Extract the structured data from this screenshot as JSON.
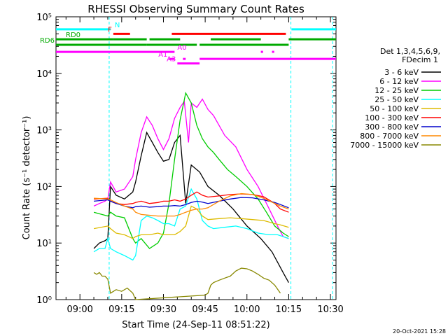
{
  "chart_data": {
    "type": "line",
    "title": "RHESSI Observing Summary Count Rates",
    "xlabel": "Start Time (24-Sep-11 08:51:22)",
    "ylabel": "Count Rate (s⁻¹ detector⁻¹)",
    "y_scale": "log",
    "ylim": [
      1,
      100000
    ],
    "xlim_minutes": [
      51.4,
      152.0
    ],
    "x_ticks": [
      {
        "label": "09:00",
        "min": 60
      },
      {
        "label": "09:15",
        "min": 75
      },
      {
        "label": "09:30",
        "min": 90
      },
      {
        "label": "09:45",
        "min": 105
      },
      {
        "label": "10:00",
        "min": 120
      },
      {
        "label": "10:15",
        "min": 135
      },
      {
        "label": "10:30",
        "min": 150
      }
    ],
    "y_ticks": [
      {
        "label": "10⁰",
        "exp": 0
      },
      {
        "label": "10¹",
        "exp": 1
      },
      {
        "label": "10²",
        "exp": 2
      },
      {
        "label": "10³",
        "exp": 3
      },
      {
        "label": "10⁴",
        "exp": 4
      },
      {
        "label": "10⁵",
        "exp": 5
      }
    ],
    "legend": {
      "placement": "right",
      "header": [
        "Det 1,3,4,5,6,9,",
        "FDecim 1"
      ]
    },
    "series": [
      {
        "name": "3 - 6 keV",
        "color": "#000000",
        "points": [
          [
            65,
            8
          ],
          [
            67,
            10
          ],
          [
            69,
            11
          ],
          [
            70,
            12
          ],
          [
            71,
            100
          ],
          [
            73,
            70
          ],
          [
            76,
            60
          ],
          [
            79,
            80
          ],
          [
            80,
            120
          ],
          [
            82,
            350
          ],
          [
            84,
            900
          ],
          [
            86,
            600
          ],
          [
            88,
            400
          ],
          [
            90,
            280
          ],
          [
            92,
            300
          ],
          [
            94,
            600
          ],
          [
            96,
            800
          ],
          [
            98,
            50
          ],
          [
            100,
            240
          ],
          [
            103,
            180
          ],
          [
            106,
            100
          ],
          [
            110,
            70
          ],
          [
            115,
            40
          ],
          [
            120,
            20
          ],
          [
            125,
            12
          ],
          [
            129,
            7
          ],
          [
            133,
            3
          ],
          [
            135,
            2
          ]
        ]
      },
      {
        "name": "6 - 12 keV",
        "color": "#ff00ff",
        "points": [
          [
            65,
            45
          ],
          [
            67,
            50
          ],
          [
            69,
            55
          ],
          [
            70,
            60
          ],
          [
            71,
            120
          ],
          [
            73,
            80
          ],
          [
            76,
            90
          ],
          [
            79,
            150
          ],
          [
            80,
            300
          ],
          [
            82,
            900
          ],
          [
            84,
            1700
          ],
          [
            86,
            1200
          ],
          [
            88,
            700
          ],
          [
            90,
            450
          ],
          [
            92,
            700
          ],
          [
            94,
            1600
          ],
          [
            96,
            2500
          ],
          [
            97.5,
            3200
          ],
          [
            99,
            600
          ],
          [
            100,
            3000
          ],
          [
            102,
            2500
          ],
          [
            104,
            3500
          ],
          [
            106,
            2300
          ],
          [
            108,
            1800
          ],
          [
            110,
            1200
          ],
          [
            112,
            800
          ],
          [
            116,
            500
          ],
          [
            120,
            200
          ],
          [
            124,
            100
          ],
          [
            128,
            40
          ],
          [
            131,
            20
          ],
          [
            133,
            13
          ],
          [
            135,
            12
          ]
        ]
      },
      {
        "name": "12 - 25 keV",
        "color": "#00cc00",
        "points": [
          [
            65,
            35
          ],
          [
            70,
            30
          ],
          [
            71,
            35
          ],
          [
            73,
            30
          ],
          [
            76,
            28
          ],
          [
            79,
            12
          ],
          [
            80,
            10
          ],
          [
            82,
            12
          ],
          [
            85,
            8
          ],
          [
            88,
            10
          ],
          [
            90,
            15
          ],
          [
            92,
            50
          ],
          [
            94,
            300
          ],
          [
            96,
            1500
          ],
          [
            98,
            4500
          ],
          [
            100,
            3000
          ],
          [
            102,
            1200
          ],
          [
            104,
            700
          ],
          [
            106,
            500
          ],
          [
            108,
            400
          ],
          [
            110,
            300
          ],
          [
            113,
            200
          ],
          [
            116,
            150
          ],
          [
            120,
            100
          ],
          [
            124,
            60
          ],
          [
            127,
            35
          ],
          [
            130,
            20
          ],
          [
            133,
            15
          ],
          [
            135,
            13
          ]
        ]
      },
      {
        "name": "25 - 50 keV",
        "color": "#00ffff",
        "points": [
          [
            65,
            7
          ],
          [
            67,
            8
          ],
          [
            69,
            8
          ],
          [
            70,
            12
          ],
          [
            71,
            8
          ],
          [
            73,
            7
          ],
          [
            76,
            6
          ],
          [
            79,
            5
          ],
          [
            80,
            6
          ],
          [
            82,
            25
          ],
          [
            84,
            30
          ],
          [
            86,
            28
          ],
          [
            88,
            25
          ],
          [
            90,
            22
          ],
          [
            92,
            22
          ],
          [
            94,
            20
          ],
          [
            96,
            40
          ],
          [
            98,
            45
          ],
          [
            100,
            90
          ],
          [
            102,
            60
          ],
          [
            104,
            25
          ],
          [
            106,
            20
          ],
          [
            108,
            18
          ],
          [
            112,
            19
          ],
          [
            116,
            20
          ],
          [
            120,
            18
          ],
          [
            124,
            15
          ],
          [
            128,
            14
          ],
          [
            131,
            14
          ],
          [
            133,
            13
          ],
          [
            135,
            12
          ]
        ]
      },
      {
        "name": "50 - 100 keV",
        "color": "#ddbb00",
        "points": [
          [
            65,
            18
          ],
          [
            70,
            20
          ],
          [
            71,
            18
          ],
          [
            73,
            15
          ],
          [
            76,
            14
          ],
          [
            79,
            12
          ],
          [
            80,
            13
          ],
          [
            82,
            14
          ],
          [
            85,
            14
          ],
          [
            88,
            15
          ],
          [
            90,
            14
          ],
          [
            92,
            14
          ],
          [
            94,
            14
          ],
          [
            96,
            16
          ],
          [
            98,
            20
          ],
          [
            100,
            45
          ],
          [
            102,
            40
          ],
          [
            104,
            30
          ],
          [
            106,
            26
          ],
          [
            110,
            27
          ],
          [
            114,
            28
          ],
          [
            118,
            27
          ],
          [
            122,
            26
          ],
          [
            126,
            25
          ],
          [
            130,
            22
          ],
          [
            132,
            21
          ],
          [
            135,
            19
          ]
        ]
      },
      {
        "name": "100 - 300 keV",
        "color": "#ff0000",
        "points": [
          [
            65,
            60
          ],
          [
            70,
            62
          ],
          [
            71,
            55
          ],
          [
            73,
            50
          ],
          [
            76,
            48
          ],
          [
            79,
            50
          ],
          [
            80,
            52
          ],
          [
            82,
            55
          ],
          [
            85,
            50
          ],
          [
            88,
            52
          ],
          [
            90,
            55
          ],
          [
            92,
            55
          ],
          [
            94,
            58
          ],
          [
            96,
            55
          ],
          [
            98,
            60
          ],
          [
            100,
            70
          ],
          [
            102,
            80
          ],
          [
            104,
            70
          ],
          [
            106,
            65
          ],
          [
            110,
            68
          ],
          [
            114,
            72
          ],
          [
            118,
            74
          ],
          [
            122,
            72
          ],
          [
            126,
            66
          ],
          [
            130,
            50
          ],
          [
            132,
            40
          ],
          [
            135,
            35
          ]
        ]
      },
      {
        "name": "300 - 800 keV",
        "color": "#0000cc",
        "points": [
          [
            65,
            55
          ],
          [
            70,
            58
          ],
          [
            71,
            55
          ],
          [
            73,
            50
          ],
          [
            76,
            45
          ],
          [
            79,
            42
          ],
          [
            80,
            44
          ],
          [
            82,
            45
          ],
          [
            85,
            43
          ],
          [
            88,
            44
          ],
          [
            90,
            45
          ],
          [
            92,
            45
          ],
          [
            94,
            46
          ],
          [
            96,
            45
          ],
          [
            98,
            48
          ],
          [
            100,
            52
          ],
          [
            102,
            55
          ],
          [
            104,
            53
          ],
          [
            106,
            50
          ],
          [
            110,
            55
          ],
          [
            114,
            60
          ],
          [
            118,
            64
          ],
          [
            122,
            63
          ],
          [
            126,
            58
          ],
          [
            130,
            52
          ],
          [
            132,
            48
          ],
          [
            135,
            42
          ]
        ]
      },
      {
        "name": "800 - 7000 keV",
        "color": "#ff8800",
        "points": [
          [
            65,
            62
          ],
          [
            70,
            60
          ],
          [
            71,
            58
          ],
          [
            73,
            52
          ],
          [
            76,
            45
          ],
          [
            79,
            40
          ],
          [
            80,
            35
          ],
          [
            82,
            32
          ],
          [
            85,
            31
          ],
          [
            88,
            30
          ],
          [
            90,
            30
          ],
          [
            92,
            30
          ],
          [
            94,
            30
          ],
          [
            96,
            32
          ],
          [
            98,
            35
          ],
          [
            100,
            38
          ],
          [
            102,
            40
          ],
          [
            104,
            40
          ],
          [
            106,
            42
          ],
          [
            110,
            55
          ],
          [
            114,
            68
          ],
          [
            118,
            75
          ],
          [
            122,
            72
          ],
          [
            126,
            62
          ],
          [
            130,
            50
          ],
          [
            132,
            45
          ],
          [
            135,
            40
          ]
        ]
      },
      {
        "name": "7000 - 15000 keV",
        "color": "#888800",
        "points": [
          [
            65,
            3
          ],
          [
            66,
            2.8
          ],
          [
            67,
            3
          ],
          [
            68,
            2.6
          ],
          [
            69,
            2.6
          ],
          [
            70,
            2.3
          ],
          [
            71,
            1.3
          ],
          [
            73,
            1.5
          ],
          [
            75,
            1.4
          ],
          [
            77,
            1.6
          ],
          [
            79,
            1.3
          ],
          [
            80,
            1
          ],
          [
            105,
            1.2
          ],
          [
            106,
            1.3
          ],
          [
            107,
            1.8
          ],
          [
            108,
            2
          ],
          [
            110,
            2.2
          ],
          [
            112,
            2.4
          ],
          [
            114,
            2.6
          ],
          [
            116,
            3.2
          ],
          [
            118,
            3.6
          ],
          [
            120,
            3.5
          ],
          [
            122,
            3.2
          ],
          [
            124,
            2.8
          ],
          [
            126,
            2.4
          ],
          [
            128,
            2.2
          ],
          [
            130,
            1.8
          ],
          [
            132,
            1.3
          ]
        ]
      }
    ],
    "state_bars": [
      {
        "label": "N",
        "color": "#00ffff",
        "y": 60000,
        "segments": [
          [
            51.4,
            71
          ],
          [
            136,
            152
          ]
        ]
      },
      {
        "label": "F",
        "color": "#ff0000",
        "y": 50000,
        "segments": [
          [
            72,
            78
          ],
          [
            93,
            134
          ]
        ]
      },
      {
        "label": "RD0",
        "color": "#00aa00",
        "y": 40000,
        "segments": [
          [
            51.4,
            72
          ],
          [
            72,
            84
          ],
          [
            85,
            96
          ],
          [
            107,
            125
          ],
          [
            135,
            152
          ]
        ]
      },
      {
        "label": "RD6",
        "color": "#00aa00",
        "y": 32000,
        "segments": [
          [
            51.4,
            84
          ],
          [
            84,
            102
          ],
          [
            103,
            135
          ]
        ]
      },
      {
        "label": "A0",
        "color": "#ff00ff",
        "y": 24000,
        "segments": [
          [
            51.4,
            94
          ],
          [
            125,
            125.8
          ],
          [
            129,
            129.8
          ]
        ]
      },
      {
        "label": "A1",
        "color": "#ff00ff",
        "y": 18000,
        "segments": [
          [
            92,
            94
          ],
          [
            97,
            98
          ],
          [
            103,
            152
          ]
        ]
      },
      {
        "label": "A3",
        "color": "#ff00ff",
        "y": 15000,
        "segments": [
          [
            95,
            103
          ]
        ]
      }
    ],
    "dashed_lines": [
      {
        "min": 70.5,
        "color": "#00ffff"
      },
      {
        "min": 135.8,
        "color": "#00ffff"
      },
      {
        "min": 150.8,
        "color": "#00ffff"
      }
    ]
  },
  "footer_date": "20-Oct-2021 15:28"
}
